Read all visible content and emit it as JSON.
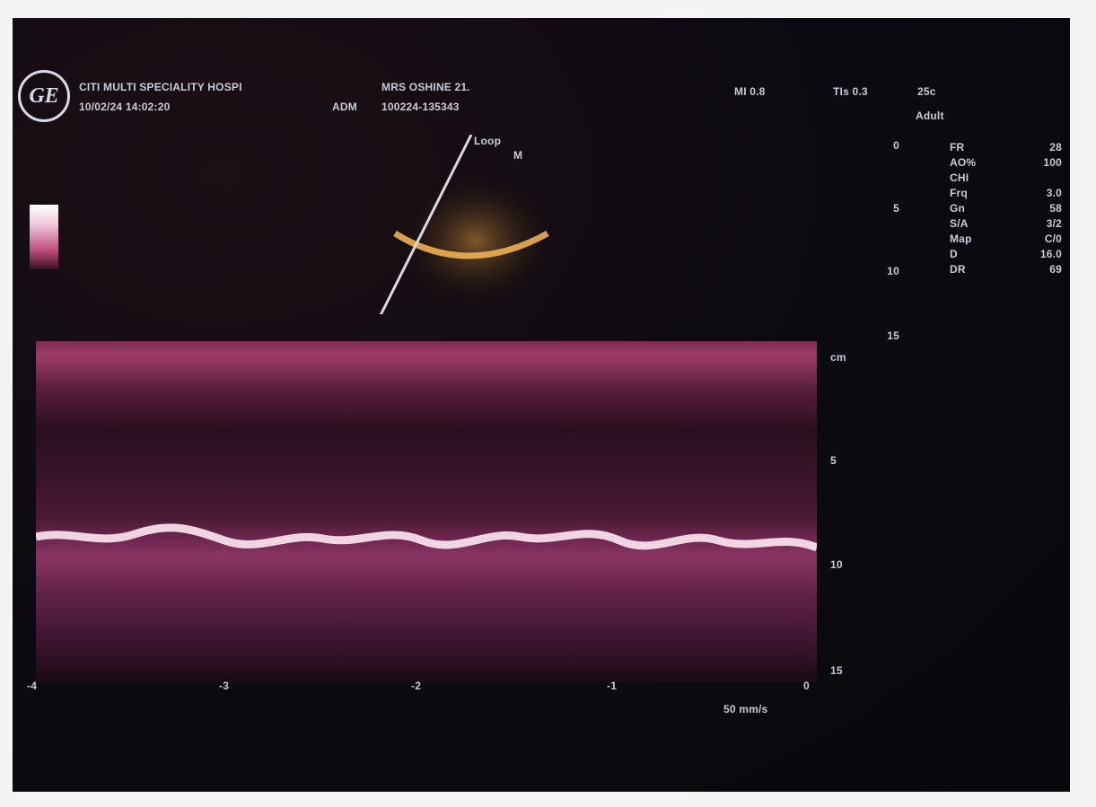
{
  "header": {
    "logo": "GE",
    "hospital": "CITI MULTI SPECIALITY HOSPI",
    "patient": "MRS OSHINE 21.",
    "datetime": "10/02/24 14:02:20",
    "operator": "ADM",
    "exam_id": "100224-135343",
    "mi": "MI 0.8",
    "tis": "TIs 0.3",
    "frame": "25c",
    "preset": "Adult"
  },
  "probe": {
    "label": "Loop",
    "mode": "M"
  },
  "depth_scale": [
    "0",
    "5",
    "10",
    "15"
  ],
  "params": [
    {
      "name": "FR",
      "value": "28"
    },
    {
      "name": "AO%",
      "value": "100"
    },
    {
      "name": "CHI"
    },
    {
      "name": "Frq",
      "value": "3.0"
    },
    {
      "name": "Gn",
      "value": "58"
    },
    {
      "name": "S/A",
      "value": "3/2"
    },
    {
      "name": "Map",
      "value": "C/0"
    },
    {
      "name": "D",
      "value": "16.0"
    },
    {
      "name": "DR",
      "value": "69"
    }
  ],
  "mmode": {
    "depth_labels": [
      "cm",
      "5",
      "10",
      "15"
    ],
    "time_labels": [
      "-4",
      "-3",
      "-2",
      "-1",
      "0"
    ],
    "sweep": "50 mm/s"
  }
}
